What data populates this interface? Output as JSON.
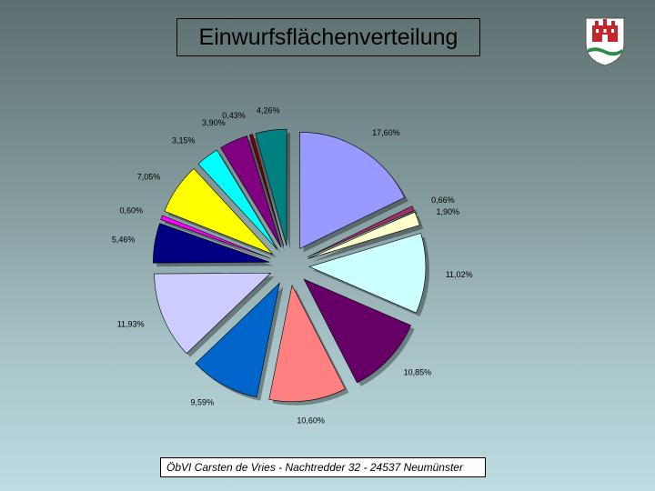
{
  "title": "Einwurfsflächenverteilung",
  "footer": "ÖbVI Carsten de Vries - Nachtredder 32 - 24537 Neumünster",
  "logo": {
    "icon": "municipal-coat-of-arms-icon",
    "colors": [
      "#c0282d",
      "#ffffff",
      "#2e8a4a"
    ]
  },
  "chart_data": {
    "type": "pie",
    "exploded": true,
    "start_angle_deg": 0,
    "slices": [
      {
        "label": "17,60%",
        "value": 17.6,
        "color": "#9999ff"
      },
      {
        "label": "0,66%",
        "value": 0.66,
        "color": "#993366"
      },
      {
        "label": "1,90%",
        "value": 1.9,
        "color": "#ffffcc"
      },
      {
        "label": "11,02%",
        "value": 11.02,
        "color": "#ccffff"
      },
      {
        "label": "10,85%",
        "value": 10.85,
        "color": "#660066"
      },
      {
        "label": "10,60%",
        "value": 10.6,
        "color": "#ff8080"
      },
      {
        "label": "9,59%",
        "value": 9.59,
        "color": "#0066cc"
      },
      {
        "label": "11,93%",
        "value": 11.93,
        "color": "#ccccff"
      },
      {
        "label": "5,46%",
        "value": 5.46,
        "color": "#000080"
      },
      {
        "label": "0,60%",
        "value": 0.6,
        "color": "#ff00ff"
      },
      {
        "label": "7,05%",
        "value": 7.05,
        "color": "#ffff00"
      },
      {
        "label": "3,15%",
        "value": 3.15,
        "color": "#00ffff"
      },
      {
        "label": "3,90%",
        "value": 3.9,
        "color": "#800080"
      },
      {
        "label": "0,43%",
        "value": 0.43,
        "color": "#800000"
      },
      {
        "label": "4,26%",
        "value": 4.26,
        "color": "#008080"
      }
    ]
  }
}
